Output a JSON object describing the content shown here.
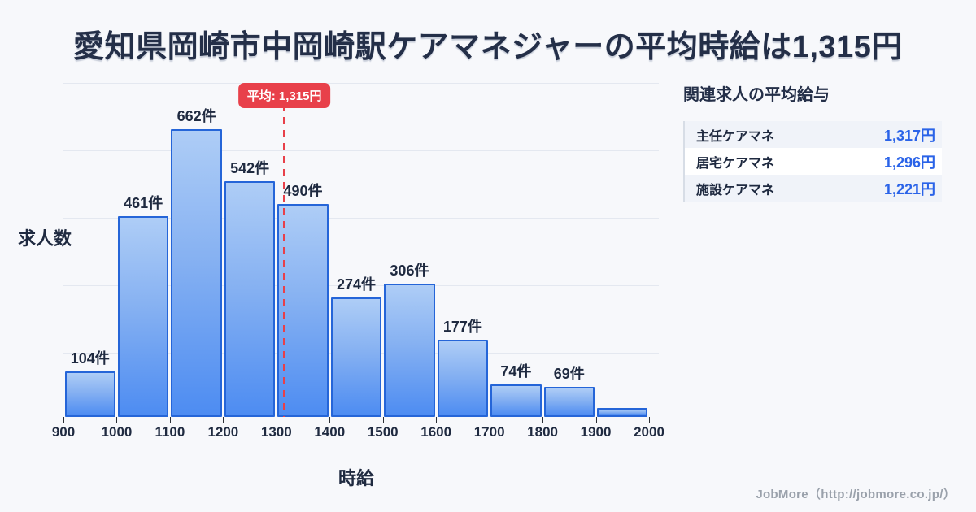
{
  "title": "愛知県岡崎市中岡崎駅ケアマネジャーの平均時給は1,315円",
  "chart_data": {
    "type": "bar",
    "title": "愛知県岡崎市中岡崎駅ケアマネジャーの平均時給は1,315円",
    "xlabel": "時給",
    "ylabel": "求人数",
    "bin_edges": [
      900,
      1000,
      1100,
      1200,
      1300,
      1400,
      1500,
      1600,
      1700,
      1800,
      1900,
      2000
    ],
    "x_ticks": [
      "900",
      "1000",
      "1100",
      "1200",
      "1300",
      "1400",
      "1500",
      "1600",
      "1700",
      "1800",
      "1900",
      "2000"
    ],
    "values": [
      104,
      461,
      662,
      542,
      490,
      274,
      306,
      177,
      74,
      69,
      21
    ],
    "bar_labels": [
      "104件",
      "461件",
      "662件",
      "542件",
      "490件",
      "274件",
      "306件",
      "177件",
      "74件",
      "69件",
      ""
    ],
    "ylim": [
      0,
      775
    ],
    "grid": true,
    "gridline_count": 5,
    "average": {
      "value": 1315,
      "label": "平均: 1,315円"
    },
    "colors": {
      "bar_fill_top": "#aecdf6",
      "bar_fill_bottom": "#4d8cf2",
      "bar_border": "#2565d8",
      "average_line": "#e8404a",
      "average_badge_bg": "#e8404a",
      "average_badge_text": "#ffffff",
      "gridline": "#e4e8f0",
      "axis_text": "#1f2a40",
      "background": "#f7f8fb"
    }
  },
  "side_panel": {
    "heading": "関連求人の平均給与",
    "rows": [
      {
        "label": "主任ケアマネ",
        "value": "1,317円"
      },
      {
        "label": "居宅ケアマネ",
        "value": "1,296円"
      },
      {
        "label": "施設ケアマネ",
        "value": "1,221円"
      }
    ],
    "value_color": "#2a63e8"
  },
  "footer": {
    "credit": "JobMore（http://jobmore.co.jp/）"
  }
}
